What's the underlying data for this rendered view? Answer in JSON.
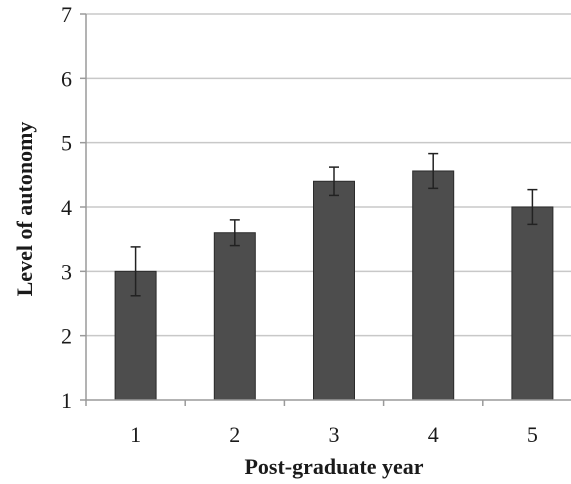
{
  "chart_data": {
    "type": "bar",
    "title": "",
    "xlabel": "Post-graduate year",
    "ylabel": "Level of autonomy",
    "categories": [
      "1",
      "2",
      "3",
      "4",
      "5"
    ],
    "series": [
      {
        "values": [
          3.0,
          3.6,
          4.4,
          4.56,
          4.0
        ],
        "error": [
          0.38,
          0.2,
          0.22,
          0.27,
          0.27
        ]
      }
    ],
    "ylim": [
      1,
      7
    ],
    "yticks": [
      "1",
      "2",
      "3",
      "4",
      "5",
      "6",
      "7"
    ],
    "grid": true,
    "legend": "none",
    "colors": {
      "bar": "#4d4d4d",
      "bar_stroke": "#2b2b2b",
      "grid": "#c8c8c8",
      "axis": "#9a9a9a",
      "error": "#222222"
    }
  }
}
